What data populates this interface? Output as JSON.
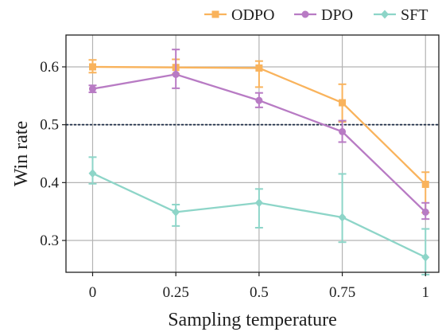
{
  "chart_data": {
    "type": "line",
    "title": "",
    "xlabel": "Sampling temperature",
    "ylabel": "Win rate",
    "x": [
      0,
      0.25,
      0.5,
      0.75,
      1
    ],
    "x_tick_labels": [
      "0",
      "0.25",
      "0.5",
      "0.75",
      "1"
    ],
    "xlim": [
      -0.08,
      1.04
    ],
    "ylim": [
      0.245,
      0.655
    ],
    "y_ticks": [
      0.3,
      0.4,
      0.5,
      0.6
    ],
    "y_tick_labels": [
      "0.3",
      "0.4",
      "0.5",
      "0.6"
    ],
    "reference_line": 0.5,
    "grid": true,
    "legend_position": "top-right",
    "series": [
      {
        "name": "ODPO",
        "color": "#F9B35C",
        "marker": "square",
        "values": [
          0.6,
          0.599,
          0.598,
          0.538,
          0.397
        ],
        "err_low": [
          0.59,
          0.588,
          0.565,
          0.505,
          0.348
        ],
        "err_high": [
          0.612,
          0.613,
          0.61,
          0.57,
          0.418
        ]
      },
      {
        "name": "DPO",
        "color": "#B87BC4",
        "marker": "circle",
        "values": [
          0.562,
          0.587,
          0.542,
          0.488,
          0.349
        ],
        "err_low": [
          0.556,
          0.563,
          0.53,
          0.47,
          0.337
        ],
        "err_high": [
          0.568,
          0.63,
          0.555,
          0.507,
          0.365
        ]
      },
      {
        "name": "SFT",
        "color": "#8DD5C8",
        "marker": "diamond",
        "values": [
          0.416,
          0.349,
          0.365,
          0.34,
          0.271
        ],
        "err_low": [
          0.398,
          0.325,
          0.322,
          0.297,
          0.241
        ],
        "err_high": [
          0.444,
          0.362,
          0.389,
          0.415,
          0.32
        ]
      }
    ]
  }
}
